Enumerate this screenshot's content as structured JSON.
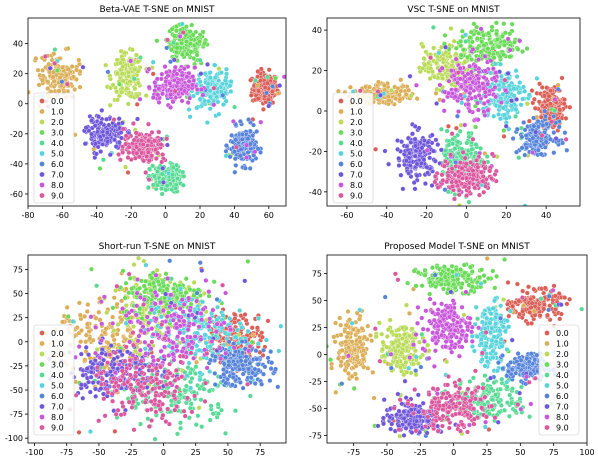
{
  "figure": {
    "legend_labels": [
      "0.0",
      "1.0",
      "2.0",
      "3.0",
      "4.0",
      "5.0",
      "6.0",
      "7.0",
      "8.0",
      "9.0"
    ],
    "colors": [
      "#db5f57",
      "#dbae57",
      "#b9db57",
      "#69db57",
      "#57db94",
      "#57d3db",
      "#5784db",
      "#6f57db",
      "#c957db",
      "#db579e"
    ]
  },
  "chart_data": [
    {
      "type": "scatter",
      "title": "Beta-VAE T-SNE on MNIST",
      "xlabel": "",
      "ylabel": "",
      "xlim": [
        -80,
        70
      ],
      "ylim": [
        -68,
        57
      ],
      "xticks": [
        -80,
        -60,
        -40,
        -20,
        0,
        20,
        40,
        60
      ],
      "yticks": [
        -60,
        -40,
        -20,
        0,
        20,
        40
      ],
      "legend_position": "left",
      "clusters": [
        {
          "label": "0.0",
          "x": 58,
          "y": 10,
          "sx": 5,
          "sy": 7
        },
        {
          "label": "1.0",
          "x": -62,
          "y": 18,
          "sx": 7,
          "sy": 9
        },
        {
          "label": "2.0",
          "x": -22,
          "y": 18,
          "sx": 6,
          "sy": 10
        },
        {
          "label": "3.0",
          "x": 12,
          "y": 40,
          "sx": 8,
          "sy": 7
        },
        {
          "label": "4.0",
          "x": 0,
          "y": -50,
          "sx": 6,
          "sy": 6
        },
        {
          "label": "5.0",
          "x": 28,
          "y": 10,
          "sx": 6,
          "sy": 8
        },
        {
          "label": "6.0",
          "x": 45,
          "y": -28,
          "sx": 5,
          "sy": 8
        },
        {
          "label": "7.0",
          "x": -35,
          "y": -20,
          "sx": 7,
          "sy": 7
        },
        {
          "label": "8.0",
          "x": 5,
          "y": 12,
          "sx": 8,
          "sy": 8
        },
        {
          "label": "9.0",
          "x": -12,
          "y": -28,
          "sx": 8,
          "sy": 7
        }
      ]
    },
    {
      "type": "scatter",
      "title": "VSC T-SNE on MNIST",
      "xlabel": "",
      "ylabel": "",
      "xlim": [
        -70,
        57
      ],
      "ylim": [
        -47,
        46
      ],
      "xticks": [
        -60,
        -40,
        -20,
        0,
        20,
        40
      ],
      "yticks": [
        -40,
        -20,
        0,
        20,
        40
      ],
      "legend_position": "left",
      "clusters": [
        {
          "label": "0.0",
          "x": 42,
          "y": 2,
          "sx": 5,
          "sy": 7
        },
        {
          "label": "1.0",
          "x": -42,
          "y": 8,
          "sx": 10,
          "sy": 3
        },
        {
          "label": "2.0",
          "x": -10,
          "y": 22,
          "sx": 8,
          "sy": 7
        },
        {
          "label": "3.0",
          "x": 12,
          "y": 32,
          "sx": 10,
          "sy": 6
        },
        {
          "label": "4.0",
          "x": -2,
          "y": -24,
          "sx": 7,
          "sy": 9
        },
        {
          "label": "5.0",
          "x": 18,
          "y": 8,
          "sx": 7,
          "sy": 9
        },
        {
          "label": "6.0",
          "x": 36,
          "y": -13,
          "sx": 6,
          "sy": 5
        },
        {
          "label": "7.0",
          "x": -25,
          "y": -22,
          "sx": 7,
          "sy": 8
        },
        {
          "label": "8.0",
          "x": 2,
          "y": 12,
          "sx": 9,
          "sy": 9
        },
        {
          "label": "9.0",
          "x": 0,
          "y": -32,
          "sx": 9,
          "sy": 6
        }
      ]
    },
    {
      "type": "scatter",
      "title": "Short-run T-SNE on MNIST",
      "xlabel": "",
      "ylabel": "",
      "xlim": [
        -105,
        95
      ],
      "ylim": [
        -105,
        90
      ],
      "xticks": [
        -100,
        -75,
        -50,
        -25,
        0,
        25,
        50,
        75
      ],
      "yticks": [
        -100,
        -75,
        -50,
        -25,
        0,
        25,
        50,
        75
      ],
      "legend_position": "left",
      "clusters": [
        {
          "label": "0.0",
          "x": 55,
          "y": 5,
          "sx": 14,
          "sy": 16
        },
        {
          "label": "1.0",
          "x": -45,
          "y": 0,
          "sx": 24,
          "sy": 30
        },
        {
          "label": "2.0",
          "x": -5,
          "y": 25,
          "sx": 24,
          "sy": 28
        },
        {
          "label": "3.0",
          "x": 0,
          "y": 50,
          "sx": 22,
          "sy": 16
        },
        {
          "label": "4.0",
          "x": 10,
          "y": -55,
          "sx": 28,
          "sy": 22
        },
        {
          "label": "5.0",
          "x": 25,
          "y": 10,
          "sx": 26,
          "sy": 26
        },
        {
          "label": "6.0",
          "x": 60,
          "y": -25,
          "sx": 16,
          "sy": 14
        },
        {
          "label": "7.0",
          "x": -40,
          "y": -30,
          "sx": 22,
          "sy": 18
        },
        {
          "label": "8.0",
          "x": 5,
          "y": 15,
          "sx": 30,
          "sy": 28
        },
        {
          "label": "9.0",
          "x": -15,
          "y": -50,
          "sx": 28,
          "sy": 24
        }
      ]
    },
    {
      "type": "scatter",
      "title": "Proposed Model T-SNE on MNIST",
      "xlabel": "",
      "ylabel": "",
      "xlim": [
        -95,
        100
      ],
      "ylim": [
        -82,
        92
      ],
      "xticks": [
        -75,
        -50,
        -25,
        0,
        25,
        50,
        75,
        100
      ],
      "yticks": [
        -75,
        -50,
        -25,
        0,
        25,
        50,
        75
      ],
      "legend_position": "right",
      "clusters": [
        {
          "label": "0.0",
          "x": 62,
          "y": 45,
          "sx": 12,
          "sy": 9
        },
        {
          "label": "1.0",
          "x": -75,
          "y": 5,
          "sx": 8,
          "sy": 20
        },
        {
          "label": "2.0",
          "x": -40,
          "y": 5,
          "sx": 10,
          "sy": 14
        },
        {
          "label": "3.0",
          "x": 0,
          "y": 70,
          "sx": 18,
          "sy": 8
        },
        {
          "label": "4.0",
          "x": 25,
          "y": -42,
          "sx": 18,
          "sy": 12
        },
        {
          "label": "5.0",
          "x": 28,
          "y": 20,
          "sx": 8,
          "sy": 20
        },
        {
          "label": "6.0",
          "x": 55,
          "y": -12,
          "sx": 10,
          "sy": 8
        },
        {
          "label": "7.0",
          "x": -30,
          "y": -58,
          "sx": 14,
          "sy": 10
        },
        {
          "label": "8.0",
          "x": -5,
          "y": 25,
          "sx": 12,
          "sy": 16
        },
        {
          "label": "9.0",
          "x": 0,
          "y": -50,
          "sx": 18,
          "sy": 14
        }
      ]
    }
  ]
}
